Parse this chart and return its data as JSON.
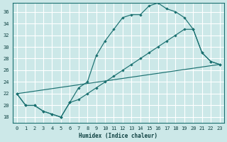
{
  "xlabel": "Humidex (Indice chaleur)",
  "bg_color": "#cce8e8",
  "grid_color": "#ffffff",
  "line_color": "#1a7070",
  "xlim": [
    -0.5,
    23.5
  ],
  "ylim": [
    17,
    37.5
  ],
  "yticks": [
    18,
    20,
    22,
    24,
    26,
    28,
    30,
    32,
    34,
    36
  ],
  "xticks": [
    0,
    1,
    2,
    3,
    4,
    5,
    6,
    7,
    8,
    9,
    10,
    11,
    12,
    13,
    14,
    15,
    16,
    17,
    18,
    19,
    20,
    21,
    22,
    23
  ],
  "line1_x": [
    0,
    1,
    2,
    3,
    4,
    5,
    6,
    7,
    8,
    9,
    10,
    11,
    12,
    13,
    14,
    15,
    16,
    17,
    18,
    19,
    20,
    21,
    22,
    23
  ],
  "line1_y": [
    22,
    20,
    20,
    19,
    18.5,
    18,
    20.5,
    23,
    24,
    28.5,
    31,
    33,
    35,
    35.5,
    35.5,
    37,
    37.5,
    36.5,
    36,
    35,
    33,
    29,
    27.5,
    27
  ],
  "line2_x": [
    0,
    1,
    2,
    3,
    4,
    5,
    6,
    7,
    8,
    9,
    10,
    11,
    12,
    13,
    14,
    15,
    16,
    17,
    18,
    19,
    20,
    21,
    22,
    23
  ],
  "line2_y": [
    22,
    20,
    20,
    19,
    18.5,
    18,
    20.5,
    21,
    22,
    23,
    24,
    25,
    26,
    27,
    28,
    29,
    30,
    31,
    32,
    33,
    33,
    29,
    27.5,
    27
  ],
  "line3_x": [
    0,
    23
  ],
  "line3_y": [
    22,
    27
  ]
}
